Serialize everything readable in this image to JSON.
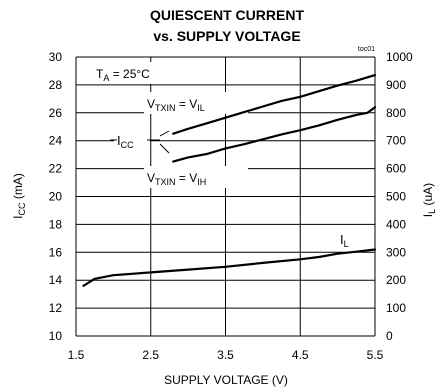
{
  "chart_data": {
    "type": "line",
    "title_line1": "QUIESCENT CURRENT",
    "title_line2": "vs. SUPPLY VOLTAGE",
    "figure_id": "toc01",
    "xlabel": "SUPPLY VOLTAGE (V)",
    "ylabel_left": {
      "main": "I",
      "sub": "CC",
      "unit": " (mA)"
    },
    "ylabel_right": {
      "main": "I",
      "sub": "L",
      "unit": " (uA)"
    },
    "xlim": [
      1.5,
      5.5
    ],
    "ylim_left": [
      10,
      30
    ],
    "ylim_right": [
      0,
      1000
    ],
    "xticks": [
      "1.5",
      "2.5",
      "3.5",
      "4.5",
      "5.5"
    ],
    "yticks_left": [
      "10",
      "12",
      "14",
      "16",
      "18",
      "20",
      "22",
      "24",
      "26",
      "28",
      "30"
    ],
    "yticks_right": [
      "0",
      "100",
      "200",
      "300",
      "400",
      "500",
      "600",
      "700",
      "800",
      "900",
      "1000"
    ],
    "grid": true,
    "annotations": {
      "temp": {
        "main": "T",
        "sub": "A",
        "rest": " = 25°C"
      },
      "icc": {
        "main": "I",
        "sub": "CC"
      },
      "vil": {
        "main": "V",
        "sub": "TXIN",
        "mid": " = V",
        "sub2": "IL"
      },
      "vih": {
        "main": "V",
        "sub": "TXIN",
        "mid": " = V",
        "sub2": "IH"
      },
      "il": {
        "main": "I",
        "sub": "L"
      }
    },
    "series": [
      {
        "axis": "left",
        "x": [
          2.8,
          3.0,
          3.25,
          3.5,
          3.75,
          4.0,
          4.25,
          4.5,
          4.75,
          5.0,
          5.25,
          5.5
        ],
        "values": [
          24.5,
          24.85,
          25.25,
          25.65,
          26.05,
          26.45,
          26.85,
          27.15,
          27.55,
          27.95,
          28.3,
          28.7
        ]
      },
      {
        "axis": "left",
        "x": [
          2.8,
          3.0,
          3.25,
          3.5,
          3.75,
          4.0,
          4.25,
          4.5,
          4.75,
          5.0,
          5.25,
          5.4,
          5.5
        ],
        "values": [
          22.5,
          22.8,
          23.05,
          23.45,
          23.75,
          24.1,
          24.45,
          24.75,
          25.1,
          25.5,
          25.85,
          26.0,
          26.4
        ]
      },
      {
        "axis": "right",
        "x": [
          1.6,
          1.75,
          2.0,
          2.5,
          3.0,
          3.5,
          4.0,
          4.5,
          4.75,
          5.0,
          5.25,
          5.5
        ],
        "values": [
          180,
          205,
          218,
          228,
          238,
          248,
          262,
          275,
          283,
          295,
          302,
          310
        ]
      }
    ]
  }
}
